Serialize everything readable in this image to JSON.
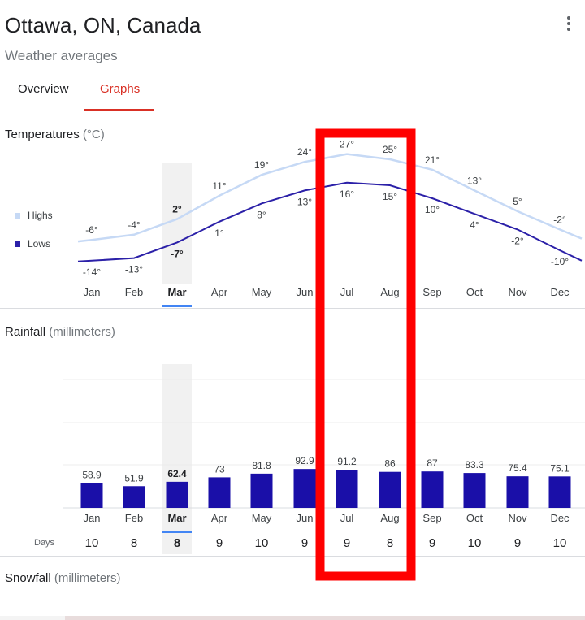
{
  "header": {
    "title": "Ottawa, ON, Canada",
    "subtitle": "Weather averages",
    "menu_icon": "more-vert-icon"
  },
  "tabs": [
    {
      "label": "Overview",
      "active": false
    },
    {
      "label": "Graphs",
      "active": true
    }
  ],
  "temperatures": {
    "label": "Temperatures",
    "unit": "(°C)",
    "legend": {
      "highs": "Highs",
      "lows": "Lows"
    }
  },
  "rainfall": {
    "label": "Rainfall",
    "unit": "(millimeters)",
    "days_label": "Days"
  },
  "snowfall": {
    "label": "Snowfall",
    "unit": "(millimeters)"
  },
  "selected_month": "Mar",
  "colors": {
    "accent_red": "#d93025",
    "highs_line": "#c6d9f5",
    "lows_line": "#2b20a8",
    "rain_bar": "#1a0fa8",
    "selection_bar": "#4285f4",
    "highlight_box": "#ff0000"
  },
  "chart_data": [
    {
      "type": "line",
      "title": "Temperatures",
      "categories": [
        "Jan",
        "Feb",
        "Mar",
        "Apr",
        "May",
        "Jun",
        "Jul",
        "Aug",
        "Sep",
        "Oct",
        "Nov",
        "Dec"
      ],
      "series": [
        {
          "name": "Highs",
          "values": [
            -6,
            -4,
            2,
            11,
            19,
            24,
            27,
            25,
            21,
            13,
            5,
            -2
          ],
          "labels": [
            "-6°",
            "-4°",
            "2°",
            "11°",
            "19°",
            "24°",
            "27°",
            "25°",
            "21°",
            "13°",
            "5°",
            "-2°"
          ]
        },
        {
          "name": "Lows",
          "values": [
            -14,
            -13,
            -7,
            1,
            8,
            13,
            16,
            15,
            10,
            4,
            -2,
            -10
          ],
          "labels": [
            "-14°",
            "-13°",
            "-7°",
            "1°",
            "8°",
            "13°",
            "16°",
            "15°",
            "10°",
            "4°",
            "-2°",
            "-10°"
          ]
        }
      ]
    },
    {
      "type": "bar",
      "title": "Rainfall",
      "categories": [
        "Jan",
        "Feb",
        "Mar",
        "Apr",
        "May",
        "Jun",
        "Jul",
        "Aug",
        "Sep",
        "Oct",
        "Nov",
        "Dec"
      ],
      "values": [
        58.9,
        51.9,
        62.4,
        73,
        81.8,
        92.9,
        91.2,
        86,
        87,
        83.3,
        75.4,
        75.1
      ],
      "value_labels": [
        "58.9",
        "51.9",
        "62.4",
        "73",
        "81.8",
        "92.9",
        "91.2",
        "86",
        "87",
        "83.3",
        "75.4",
        "75.1"
      ],
      "days": [
        "10",
        "8",
        "8",
        "9",
        "10",
        "9",
        "9",
        "8",
        "9",
        "10",
        "9",
        "10"
      ]
    }
  ]
}
